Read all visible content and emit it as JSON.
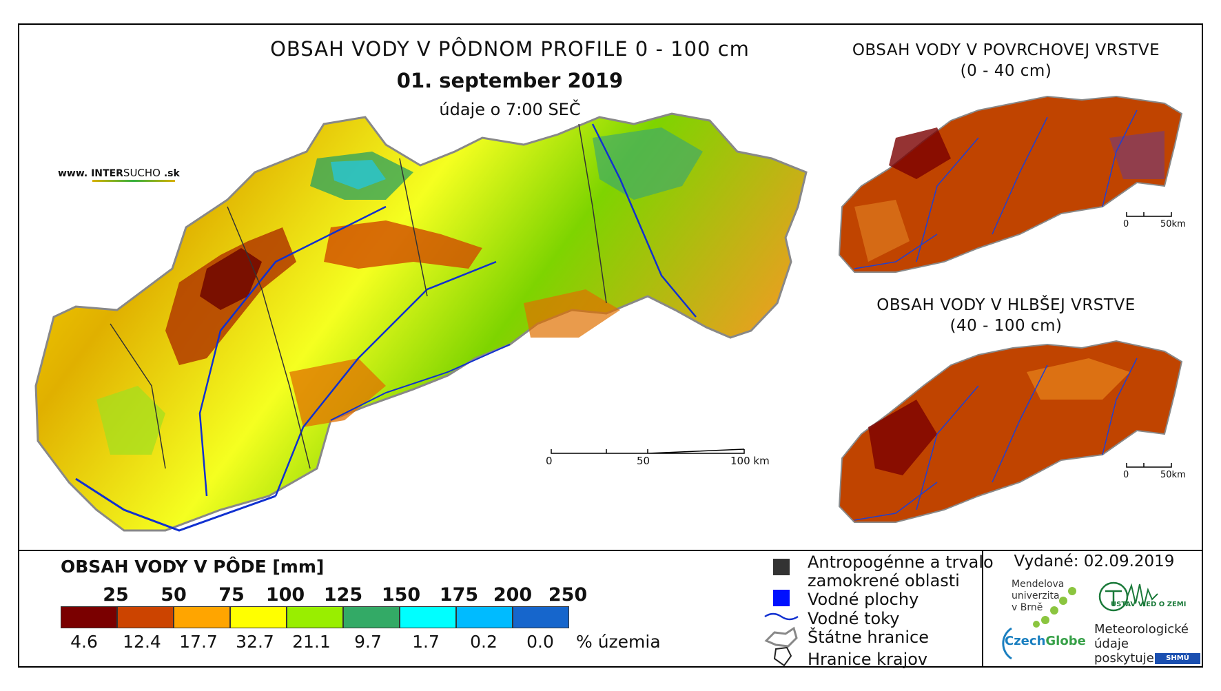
{
  "main_title": "OBSAH VODY V PÔDNOM PROFILE 0 - 100 cm",
  "date": "01. september 2019",
  "time_note": "údaje o 7:00 SEČ",
  "website": {
    "prefix": "www. INTER",
    "mid": "SUCHO",
    "suffix": " .sk"
  },
  "inset_top": {
    "line1": "OBSAH VODY V POVRCHOVEJ VRSTVE",
    "line2": "(0 - 40 cm)",
    "scale_ticks": [
      "0",
      "50km"
    ]
  },
  "inset_bottom": {
    "line1": "OBSAH VODY V HLBŠEJ VRSTVE",
    "line2": "(40 - 100 cm)",
    "scale_ticks": [
      "0",
      "50km"
    ]
  },
  "main_scale_ticks": [
    "0",
    "50",
    "100 km"
  ],
  "legend": {
    "title": "OBSAH VODY V PÔDE [mm]",
    "bounds": [
      "25",
      "50",
      "75",
      "100",
      "125",
      "150",
      "175",
      "200",
      "250"
    ],
    "classes": [
      {
        "color": "#7a0000",
        "percent": "4.6"
      },
      {
        "color": "#cc4400",
        "percent": "12.4"
      },
      {
        "color": "#ffa500",
        "percent": "17.7"
      },
      {
        "color": "#ffff00",
        "percent": "32.7"
      },
      {
        "color": "#99ee00",
        "percent": "21.1"
      },
      {
        "color": "#33aa66",
        "percent": "9.7"
      },
      {
        "color": "#00ffff",
        "percent": "1.7"
      },
      {
        "color": "#00bbff",
        "percent": "0.2"
      },
      {
        "color": "#1666cc",
        "percent": "0.0"
      }
    ],
    "unit_label": "% územia"
  },
  "layers_legend": {
    "anthropogenic_1": "Antropogénne a trvalo",
    "anthropogenic_2": "zamokrené oblasti",
    "water_bodies": "Vodné plochy",
    "rivers": "Vodné toky",
    "state_border": "Štátne hranice",
    "region_border": "Hranice krajov"
  },
  "issued": "Vydané: 02.09.2019",
  "logos": {
    "mendel_1": "Mendelova",
    "mendel_2": "univerzita",
    "mendel_3": "v Brně",
    "czech": "Czech",
    "globe": "Globe",
    "ustav": "ÚSTAV VIED O ZEMI",
    "meteo_1": "Meteorologické",
    "meteo_2": "údaje",
    "meteo_3": "poskytuje:",
    "shmu": "SHMÚ"
  }
}
